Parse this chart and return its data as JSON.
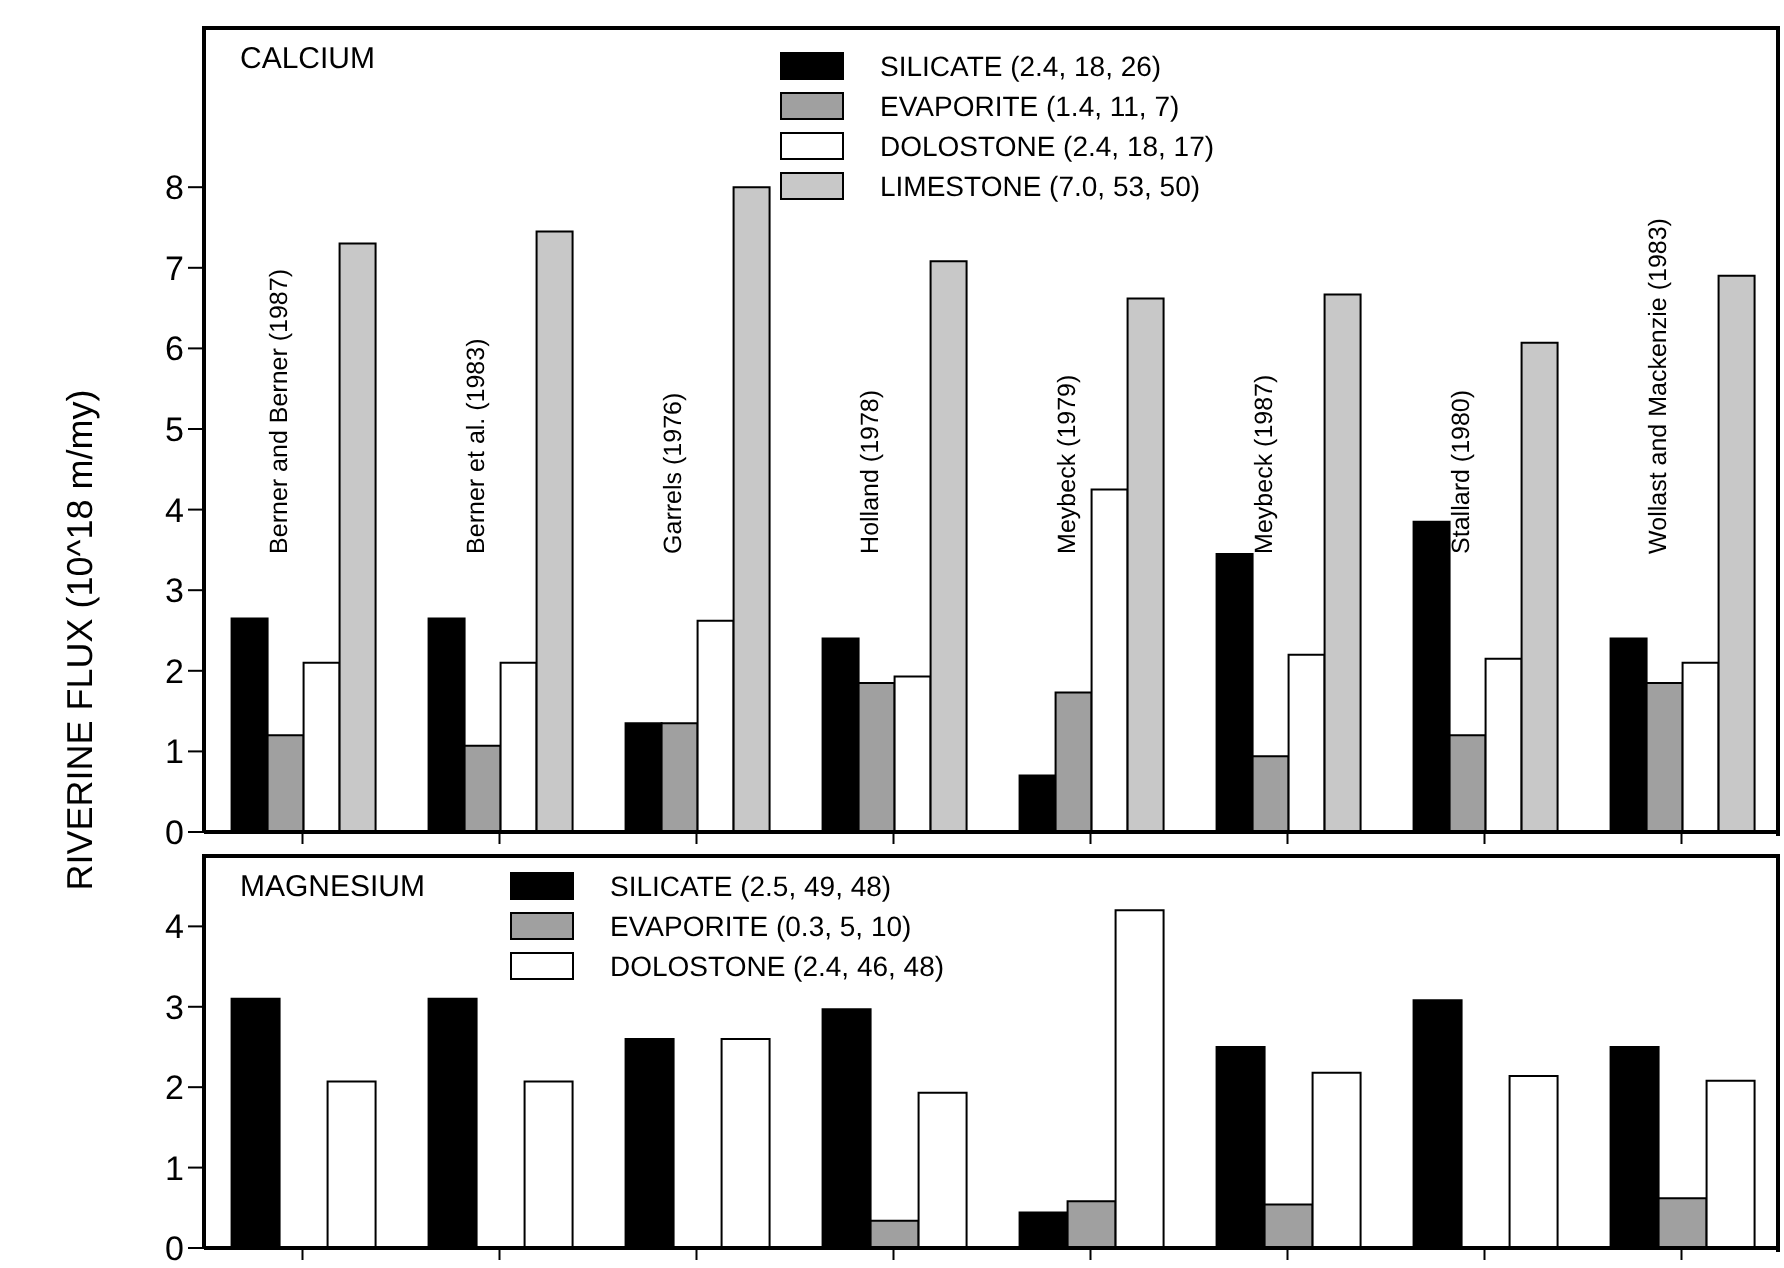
{
  "chart_data": [
    {
      "type": "bar",
      "title": "CALCIUM",
      "ylabel": "RIVERINE FLUX (10^18 m/my)",
      "categories": [
        "Berner and Berner (1987)",
        "Berner et al. (1983)",
        "Garrels (1976)",
        "Holland (1978)",
        "Meybeck (1979)",
        "Meybeck (1987)",
        "Stallard (1980)",
        "Wollast and Mackenzie (1983)"
      ],
      "series": [
        {
          "name": "SILICATE (2.4, 18, 26)",
          "color": "#000000",
          "values": [
            2.65,
            2.65,
            1.35,
            2.4,
            0.7,
            3.45,
            3.85,
            2.4
          ]
        },
        {
          "name": "EVAPORITE (1.4, 11, 7)",
          "color": "#a0a0a0",
          "values": [
            1.2,
            1.07,
            1.35,
            1.85,
            1.73,
            0.94,
            1.2,
            1.85
          ]
        },
        {
          "name": "DOLOSTONE (2.4, 18, 17)",
          "color": "#ffffff",
          "values": [
            2.1,
            2.1,
            2.62,
            1.93,
            4.25,
            2.2,
            2.15,
            2.1
          ]
        },
        {
          "name": "LIMESTONE (7.0, 53, 50)",
          "color": "#c8c8c8",
          "values": [
            7.3,
            7.45,
            8.0,
            7.08,
            6.62,
            6.67,
            6.07,
            6.9
          ]
        }
      ],
      "ylim": [
        0,
        10
      ],
      "yticks": [
        0,
        1,
        2,
        3,
        4,
        5,
        6,
        7,
        8
      ],
      "legend": "top",
      "grid": false
    },
    {
      "type": "bar",
      "title": "MAGNESIUM",
      "categories": [
        null,
        null,
        null,
        null,
        null,
        null,
        null,
        null
      ],
      "series": [
        {
          "name": "SILICATE (2.5, 49, 48)",
          "color": "#000000",
          "values": [
            3.1,
            3.1,
            2.6,
            2.97,
            0.44,
            2.5,
            3.08,
            2.5
          ]
        },
        {
          "name": "EVAPORITE (0.3, 5, 10)",
          "color": "#a0a0a0",
          "values": [
            null,
            null,
            null,
            0.34,
            0.58,
            0.54,
            null,
            0.62
          ]
        },
        {
          "name": "DOLOSTONE (2.4, 46, 48)",
          "color": "#ffffff",
          "values": [
            2.07,
            2.07,
            2.6,
            1.93,
            4.2,
            2.18,
            2.14,
            2.08
          ]
        }
      ],
      "ylim": [
        0,
        4.9
      ],
      "yticks": [
        0,
        1,
        2,
        3,
        4
      ],
      "legend": "top",
      "grid": false,
      "tick_labels": "y"
    }
  ]
}
